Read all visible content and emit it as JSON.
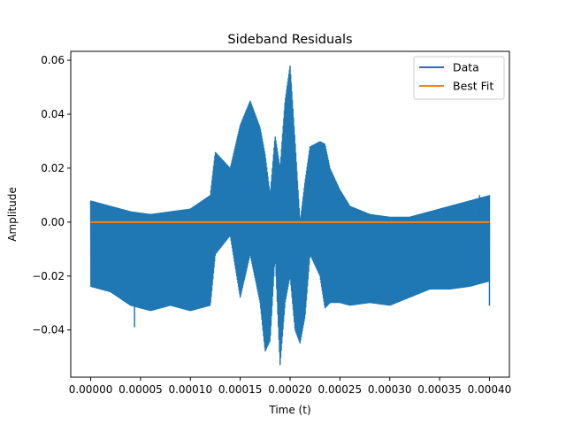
{
  "chart_data": {
    "type": "line",
    "title": "Sideband Residuals",
    "xlabel": "Time (t)",
    "ylabel": "Amplitude",
    "xlim": [
      -2e-05,
      0.00042
    ],
    "ylim": [
      -0.0575,
      0.0633
    ],
    "x_ticks": [
      0.0,
      5e-05,
      0.0001,
      0.00015,
      0.0002,
      0.00025,
      0.0003,
      0.00035,
      0.0004
    ],
    "x_tick_labels": [
      "0.00000",
      "0.00005",
      "0.00010",
      "0.00015",
      "0.00020",
      "0.00025",
      "0.00030",
      "0.00035",
      "0.00040"
    ],
    "y_ticks": [
      -0.04,
      -0.02,
      0.0,
      0.02,
      0.04,
      0.06
    ],
    "y_tick_labels": [
      "−0.04",
      "−0.02",
      "0.00",
      "0.02",
      "0.04",
      "0.06"
    ],
    "grid": false,
    "legend_position": "top-right",
    "series": [
      {
        "name": "Data",
        "color": "#1f77b4",
        "envelope": {
          "x": [
            0.0,
            2e-05,
            4e-05,
            6e-05,
            8e-05,
            0.0001,
            0.00012,
            0.000125,
            0.00014,
            0.00015,
            0.00016,
            0.00017,
            0.000175,
            0.00018,
            0.000185,
            0.00019,
            0.000195,
            0.0002,
            0.000205,
            0.00021,
            0.000215,
            0.00022,
            0.00023,
            0.000235,
            0.00024,
            0.00025,
            0.00026,
            0.00028,
            0.0003,
            0.00032,
            0.00034,
            0.00036,
            0.00038,
            0.0004
          ],
          "upper": [
            0.008,
            0.006,
            0.004,
            0.003,
            0.004,
            0.005,
            0.01,
            0.026,
            0.02,
            0.036,
            0.045,
            0.035,
            0.025,
            0.01,
            0.032,
            0.02,
            0.045,
            0.058,
            0.03,
            0.0,
            0.015,
            0.028,
            0.03,
            0.029,
            0.02,
            0.012,
            0.006,
            0.003,
            0.002,
            0.002,
            0.004,
            0.006,
            0.008,
            0.01
          ],
          "lower": [
            -0.024,
            -0.026,
            -0.031,
            -0.033,
            -0.031,
            -0.033,
            -0.031,
            -0.012,
            -0.005,
            -0.028,
            -0.012,
            -0.03,
            -0.048,
            -0.044,
            -0.012,
            -0.053,
            -0.03,
            -0.02,
            -0.04,
            -0.045,
            -0.035,
            -0.012,
            -0.02,
            -0.032,
            -0.03,
            -0.03,
            -0.031,
            -0.03,
            -0.031,
            -0.028,
            -0.025,
            -0.025,
            -0.024,
            -0.022
          ]
        },
        "spikes": [
          {
            "x": 4.4e-05,
            "y": -0.039
          },
          {
            "x": 0.0004,
            "y": -0.031
          },
          {
            "x": 0.00039,
            "y": 0.01
          }
        ]
      },
      {
        "name": "Best Fit",
        "color": "#ff7f0e",
        "x": [
          0.0,
          0.0004
        ],
        "y": [
          0.0,
          0.0
        ]
      }
    ]
  }
}
